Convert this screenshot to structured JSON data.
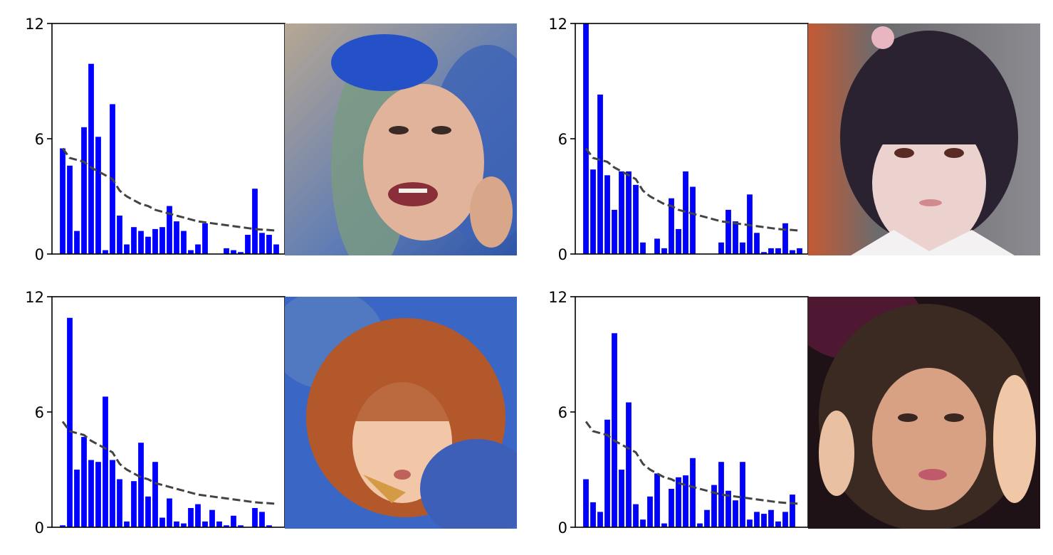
{
  "colors": {
    "bars": "#0000ff",
    "trend_line": "#444444",
    "axes": "#000000",
    "background": "#ffffff"
  },
  "chart_data": [
    {
      "type": "bar",
      "overlay": "dashed trend line",
      "ylim": [
        0,
        12
      ],
      "yticks": [
        "0",
        "6",
        "12"
      ],
      "xticks_visible": false,
      "values": [
        5.5,
        4.6,
        1.2,
        6.6,
        9.9,
        6.1,
        0.2,
        7.8,
        2.0,
        0.5,
        1.4,
        1.2,
        0.9,
        1.3,
        1.4,
        2.5,
        1.7,
        1.2,
        0.2,
        0.5,
        1.6,
        0.0,
        0.0,
        0.3,
        0.2,
        0.1,
        1.0,
        3.4,
        1.1,
        1.0,
        0.5
      ],
      "trend": [
        5.5,
        5.0,
        4.9,
        4.8,
        4.5,
        4.3,
        4.1,
        3.9,
        3.3,
        3.0,
        2.8,
        2.6,
        2.5,
        2.3,
        2.2,
        2.1,
        2.0,
        1.9,
        1.8,
        1.7,
        1.65,
        1.6,
        1.55,
        1.5,
        1.45,
        1.4,
        1.35,
        1.3,
        1.27,
        1.25,
        1.22
      ],
      "photo": {
        "icon": "face-photo-blue-hat"
      }
    },
    {
      "type": "bar",
      "overlay": "dashed trend line",
      "ylim": [
        0,
        12
      ],
      "yticks": [
        "0",
        "6",
        "12"
      ],
      "xticks_visible": false,
      "values": [
        12.0,
        4.4,
        8.3,
        4.1,
        2.3,
        4.3,
        4.3,
        3.6,
        0.6,
        0.0,
        0.8,
        0.3,
        2.9,
        1.3,
        4.3,
        3.5,
        0.0,
        0.0,
        0.0,
        0.6,
        2.3,
        1.7,
        0.6,
        3.1,
        1.1,
        0.1,
        0.3,
        0.3,
        1.6,
        0.2,
        0.3
      ],
      "trend": [
        5.5,
        5.0,
        4.9,
        4.8,
        4.5,
        4.3,
        4.1,
        3.9,
        3.3,
        3.0,
        2.8,
        2.6,
        2.5,
        2.3,
        2.2,
        2.1,
        2.0,
        1.9,
        1.8,
        1.7,
        1.65,
        1.6,
        1.55,
        1.5,
        1.45,
        1.4,
        1.35,
        1.3,
        1.27,
        1.25,
        1.22
      ],
      "photo": {
        "icon": "face-photo-dark-hair-cosplay"
      }
    },
    {
      "type": "bar",
      "overlay": "dashed trend line",
      "ylim": [
        0,
        12
      ],
      "yticks": [
        "0",
        "6",
        "12"
      ],
      "xticks_visible": false,
      "values": [
        0.1,
        10.9,
        3.0,
        4.7,
        3.5,
        3.4,
        6.8,
        3.5,
        2.5,
        0.3,
        2.4,
        4.4,
        1.6,
        3.4,
        0.5,
        1.5,
        0.3,
        0.2,
        1.0,
        1.2,
        0.3,
        0.9,
        0.3,
        0.1,
        0.6,
        0.1,
        0.0,
        1.0,
        0.8,
        0.1,
        0.0
      ],
      "trend": [
        5.5,
        5.0,
        4.9,
        4.8,
        4.5,
        4.3,
        4.1,
        3.9,
        3.3,
        3.0,
        2.8,
        2.6,
        2.5,
        2.3,
        2.2,
        2.1,
        2.0,
        1.9,
        1.8,
        1.7,
        1.65,
        1.6,
        1.55,
        1.5,
        1.45,
        1.4,
        1.35,
        1.3,
        1.27,
        1.25,
        1.22
      ],
      "photo": {
        "icon": "face-photo-orange-hair"
      }
    },
    {
      "type": "bar",
      "overlay": "dashed trend line",
      "ylim": [
        0,
        12
      ],
      "yticks": [
        "0",
        "6",
        "12"
      ],
      "xticks_visible": false,
      "values": [
        2.5,
        1.3,
        0.8,
        5.6,
        10.1,
        3.0,
        6.5,
        1.2,
        0.4,
        1.6,
        2.8,
        0.2,
        2.0,
        2.6,
        2.7,
        3.6,
        0.2,
        0.9,
        2.2,
        3.4,
        1.9,
        1.4,
        3.4,
        0.4,
        0.8,
        0.7,
        0.9,
        0.3,
        0.8,
        1.7,
        0.0
      ],
      "trend": [
        5.5,
        5.0,
        4.9,
        4.8,
        4.5,
        4.3,
        4.1,
        3.9,
        3.3,
        3.0,
        2.8,
        2.6,
        2.5,
        2.3,
        2.2,
        2.1,
        2.0,
        1.9,
        1.8,
        1.7,
        1.65,
        1.6,
        1.55,
        1.5,
        1.45,
        1.4,
        1.35,
        1.3,
        1.27,
        1.25,
        1.22
      ],
      "photo": {
        "icon": "face-photo-curly-dark-hair"
      }
    }
  ]
}
